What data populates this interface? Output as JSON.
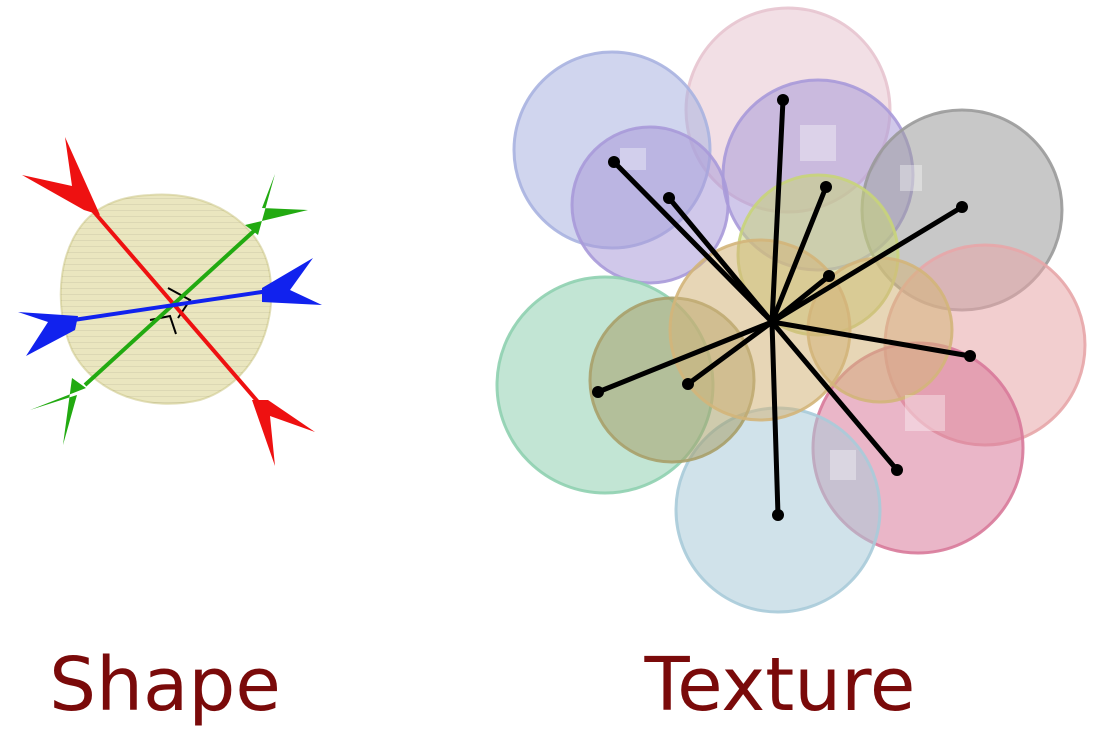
{
  "captions": {
    "shape": "Shape",
    "texture": "Texture"
  },
  "colors": {
    "caption_text": "#7a0a0a",
    "shape_blob": "#e6e2b4",
    "shape_blob_edge": "#cfc98e",
    "axis_red": "#ee1111",
    "axis_green": "#22aa11",
    "axis_blue": "#1122ee",
    "spoke": "#000000",
    "texture_blobs": [
      "#e7c4cf",
      "#a9b3e0",
      "#a99ad9",
      "#9a9a9a",
      "#e7a6a8",
      "#d87a9a",
      "#a9cbd9",
      "#8fd0b0",
      "#a8a06a",
      "#c8d47a",
      "#d3b57a"
    ]
  },
  "icons": {
    "axis_arrowheads": "arrowhead-icon",
    "right_angle_marker": "right-angle-icon"
  }
}
